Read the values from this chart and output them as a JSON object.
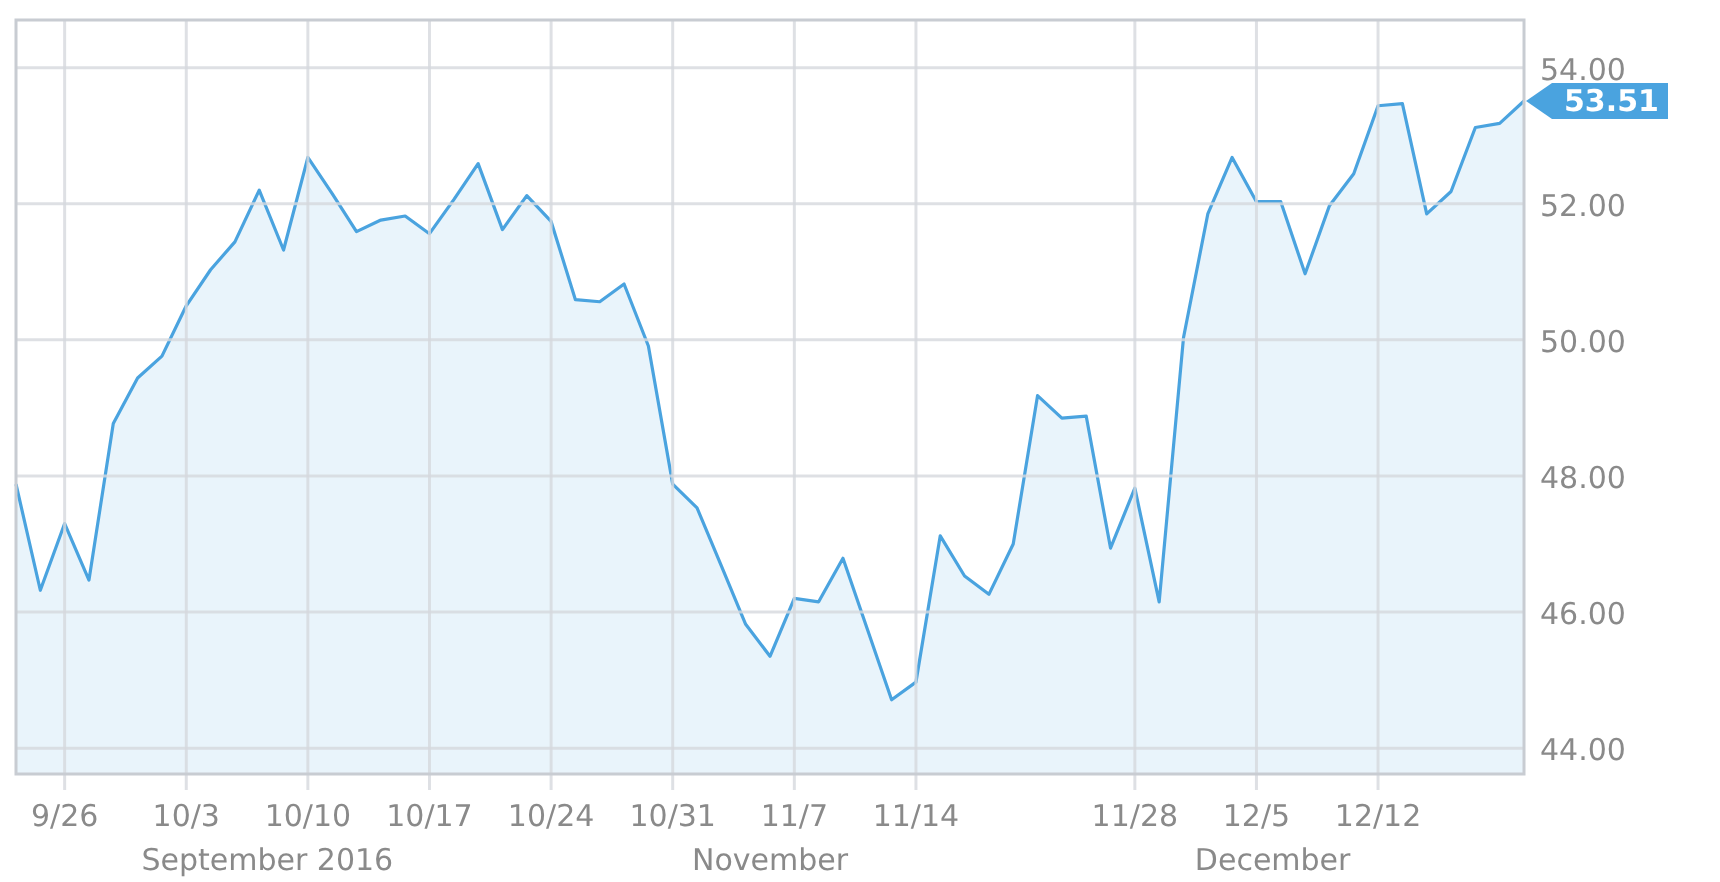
{
  "chart_data": {
    "type": "area",
    "categories": [
      null,
      null,
      "9/26",
      null,
      null,
      null,
      null,
      "10/3",
      null,
      null,
      null,
      null,
      "10/10",
      null,
      null,
      null,
      null,
      "10/17",
      null,
      null,
      null,
      null,
      "10/24",
      null,
      null,
      null,
      null,
      "10/31",
      null,
      null,
      null,
      null,
      "11/7",
      null,
      null,
      null,
      null,
      "11/14",
      null,
      null,
      null,
      null,
      null,
      null,
      null,
      null,
      "11/28",
      null,
      null,
      null,
      null,
      "12/5",
      null,
      null,
      null,
      null,
      "12/12",
      null,
      null,
      null,
      null,
      null,
      null
    ],
    "series": [
      {
        "color": "#4aa3df",
        "values": [
          47.88,
          46.32,
          47.3,
          46.47,
          48.77,
          49.44,
          49.76,
          50.5,
          51.03,
          51.44,
          52.2,
          51.32,
          52.68,
          52.15,
          51.59,
          51.76,
          51.82,
          51.56,
          52.06,
          52.59,
          51.62,
          52.12,
          51.74,
          50.59,
          50.56,
          50.82,
          49.91,
          47.88,
          47.53,
          46.68,
          45.82,
          45.35,
          46.2,
          46.15,
          46.79,
          45.75,
          44.71,
          44.97,
          47.12,
          46.53,
          46.26,
          47.0,
          49.18,
          48.85,
          48.88,
          46.94,
          47.82,
          46.15,
          50.03,
          51.85,
          52.68,
          52.03,
          52.03,
          50.97,
          51.97,
          52.44,
          53.44,
          53.47,
          51.85,
          52.18,
          53.12,
          53.18,
          53.51
        ],
        "value_labels": [
          null,
          null,
          null,
          null,
          null,
          null,
          null,
          null,
          null,
          null,
          null,
          null,
          null,
          null,
          null,
          null,
          null,
          null,
          null,
          null,
          null,
          null,
          null,
          null,
          null,
          null,
          null,
          null,
          null,
          null,
          null,
          null,
          null,
          null,
          null,
          null,
          null,
          null,
          null,
          null,
          null,
          null,
          null,
          null,
          null,
          null,
          null,
          null,
          null,
          null,
          null,
          null,
          null,
          null,
          null,
          null,
          null,
          null,
          null,
          null,
          null,
          null,
          "53.51"
        ]
      }
    ],
    "ylim": [
      43.62,
      54.7
    ],
    "yticks": [
      {
        "value": 44,
        "label": "44.00"
      },
      {
        "value": 46,
        "label": "46.00"
      },
      {
        "value": 48,
        "label": "48.00"
      },
      {
        "value": 50,
        "label": "50.00"
      },
      {
        "value": 52,
        "label": "52.00"
      },
      {
        "value": 54,
        "label": "54.00"
      }
    ],
    "annotations": [
      "September 2016",
      "November",
      "December"
    ],
    "grid": true
  }
}
